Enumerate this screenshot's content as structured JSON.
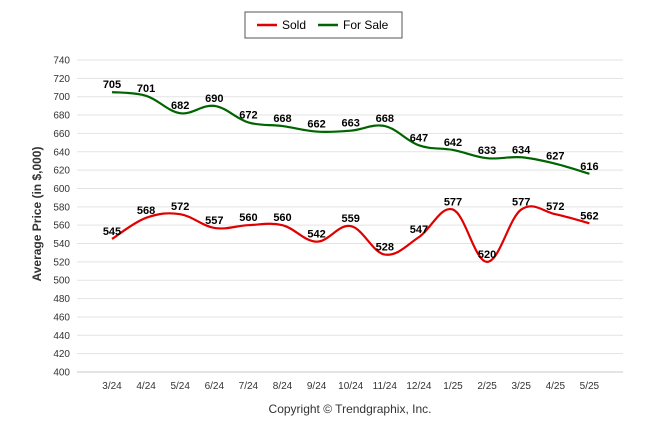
{
  "chart_data": {
    "type": "line",
    "categories": [
      "3/24",
      "4/24",
      "5/24",
      "6/24",
      "7/24",
      "8/24",
      "9/24",
      "10/24",
      "11/24",
      "12/24",
      "1/25",
      "2/25",
      "3/25",
      "4/25",
      "5/25"
    ],
    "series": [
      {
        "name": "Sold",
        "color": "#e00000",
        "values": [
          545,
          568,
          572,
          557,
          560,
          560,
          542,
          559,
          528,
          547,
          577,
          520,
          577,
          572,
          562
        ]
      },
      {
        "name": "For Sale",
        "color": "#006400",
        "values": [
          705,
          701,
          682,
          690,
          672,
          668,
          662,
          663,
          668,
          647,
          642,
          633,
          634,
          627,
          616
        ]
      }
    ],
    "ylabel": "Average Price (in $,000)",
    "xlabel": "",
    "ylim": [
      400,
      740
    ],
    "ytick_step": 20,
    "grid": true,
    "legend": "top-center",
    "data_labels": true,
    "smooth": true
  },
  "footer": {
    "copyright": "Copyright © Trendgraphix, Inc."
  }
}
